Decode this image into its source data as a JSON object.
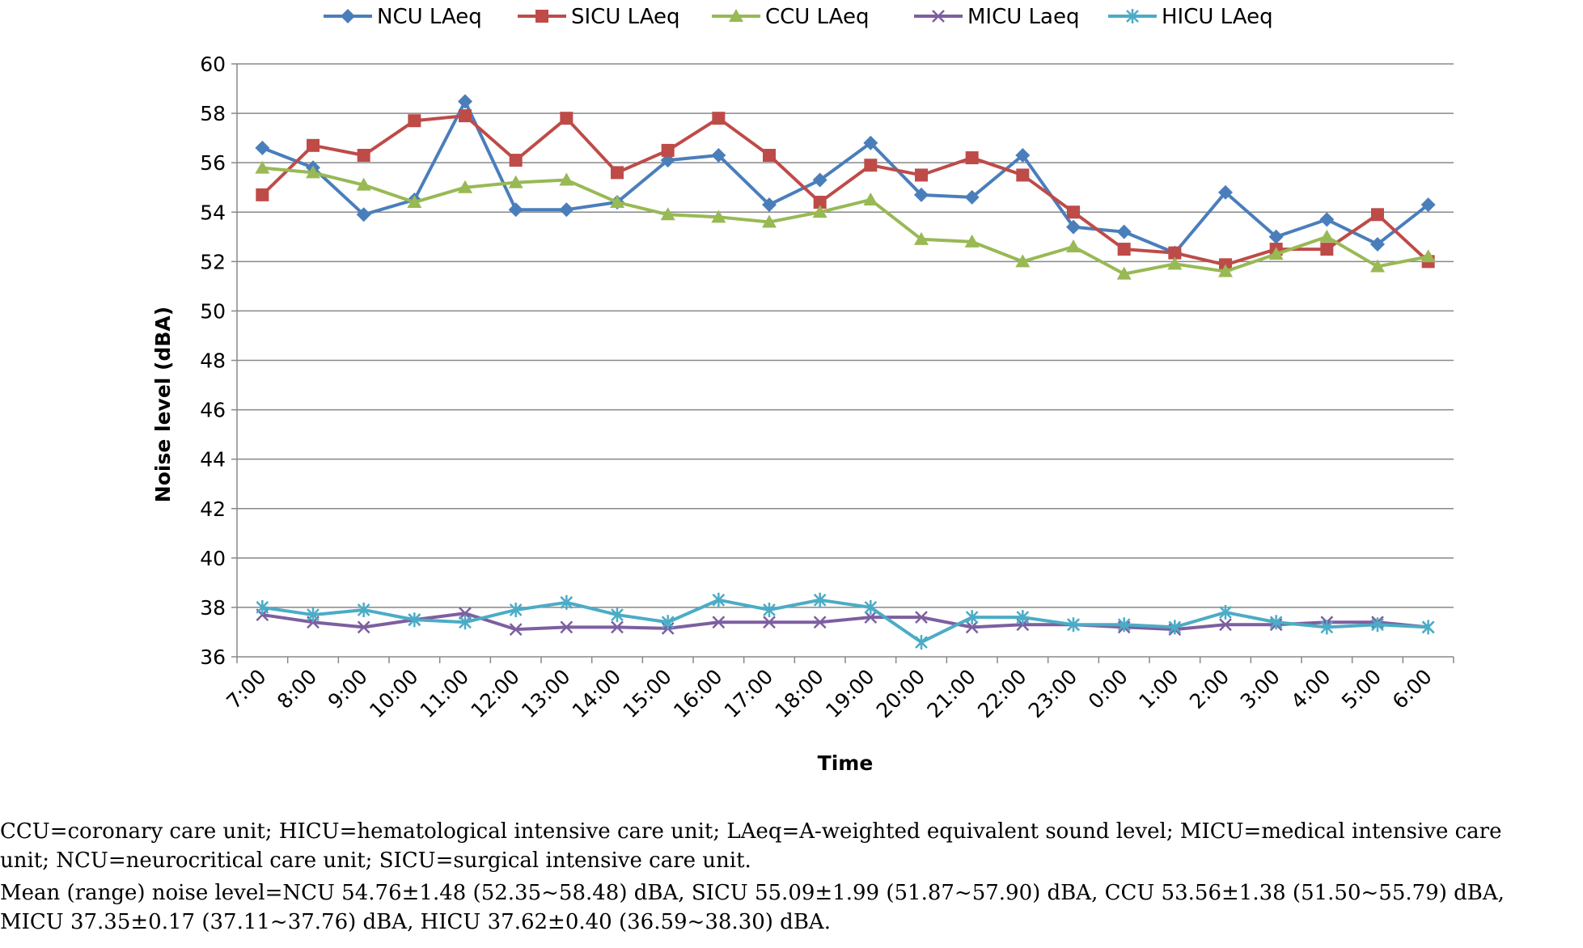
{
  "chart_data": {
    "type": "line",
    "title": "",
    "xlabel": "Time",
    "ylabel": "Noise level (dBA)",
    "ylim": [
      36,
      60
    ],
    "ytick_step": 2,
    "grid": "horizontal",
    "legend_position": "top",
    "categories": [
      "7:00",
      "8:00",
      "9:00",
      "10:00",
      "11:00",
      "12:00",
      "13:00",
      "14:00",
      "15:00",
      "16:00",
      "17:00",
      "18:00",
      "19:00",
      "20:00",
      "21:00",
      "22:00",
      "23:00",
      "0:00",
      "1:00",
      "2:00",
      "3:00",
      "4:00",
      "5:00",
      "6:00"
    ],
    "series": [
      {
        "name": "NCU LAeq",
        "color": "#4a7ebb",
        "marker": "diamond",
        "values": [
          56.6,
          55.8,
          53.9,
          54.5,
          58.48,
          54.1,
          54.1,
          54.4,
          56.1,
          56.3,
          54.3,
          55.3,
          56.8,
          54.7,
          54.6,
          56.3,
          53.4,
          53.2,
          52.35,
          54.8,
          53.0,
          53.7,
          52.7,
          54.3
        ]
      },
      {
        "name": "SICU LAeq",
        "color": "#be4b48",
        "marker": "square",
        "values": [
          54.7,
          56.7,
          56.3,
          57.7,
          57.9,
          56.1,
          57.8,
          55.6,
          56.5,
          57.8,
          56.3,
          54.4,
          55.9,
          55.5,
          56.2,
          55.5,
          54.0,
          52.5,
          52.35,
          51.87,
          52.5,
          52.5,
          53.9,
          52.0
        ]
      },
      {
        "name": "CCU LAeq",
        "color": "#98b954",
        "marker": "triangle",
        "values": [
          55.79,
          55.6,
          55.1,
          54.4,
          55.0,
          55.2,
          55.3,
          54.4,
          53.9,
          53.8,
          53.6,
          54.0,
          54.5,
          52.9,
          52.8,
          52.0,
          52.6,
          51.5,
          51.9,
          51.6,
          52.3,
          53.0,
          51.8,
          52.2
        ]
      },
      {
        "name": "MICU Laeq",
        "color": "#7d5fa0",
        "marker": "x",
        "values": [
          37.7,
          37.4,
          37.2,
          37.5,
          37.76,
          37.11,
          37.2,
          37.2,
          37.15,
          37.4,
          37.4,
          37.4,
          37.6,
          37.6,
          37.2,
          37.3,
          37.3,
          37.2,
          37.11,
          37.3,
          37.3,
          37.4,
          37.4,
          37.2
        ]
      },
      {
        "name": "HICU LAeq",
        "color": "#4bacc6",
        "marker": "star",
        "values": [
          38.0,
          37.7,
          37.9,
          37.5,
          37.4,
          37.9,
          38.2,
          37.7,
          37.4,
          38.3,
          37.9,
          38.3,
          38.0,
          36.59,
          37.6,
          37.6,
          37.3,
          37.3,
          37.2,
          37.8,
          37.4,
          37.2,
          37.3,
          37.2
        ]
      }
    ]
  },
  "footnote": {
    "line1": "CCU=coronary care unit; HICU=hematological intensive care unit; LAeq=A-weighted equivalent sound level; MICU=medical intensive care",
    "line2": "unit; NCU=neurocritical care unit; SICU=surgical intensive care unit.",
    "line3": "Mean (range) noise level=NCU 54.76±1.48 (52.35~58.48) dBA, SICU 55.09±1.99 (51.87~57.90) dBA, CCU 53.56±1.38 (51.50~55.79) dBA,",
    "line4": "MICU 37.35±0.17 (37.11~37.76) dBA, HICU 37.62±0.40 (36.59~38.30) dBA."
  }
}
